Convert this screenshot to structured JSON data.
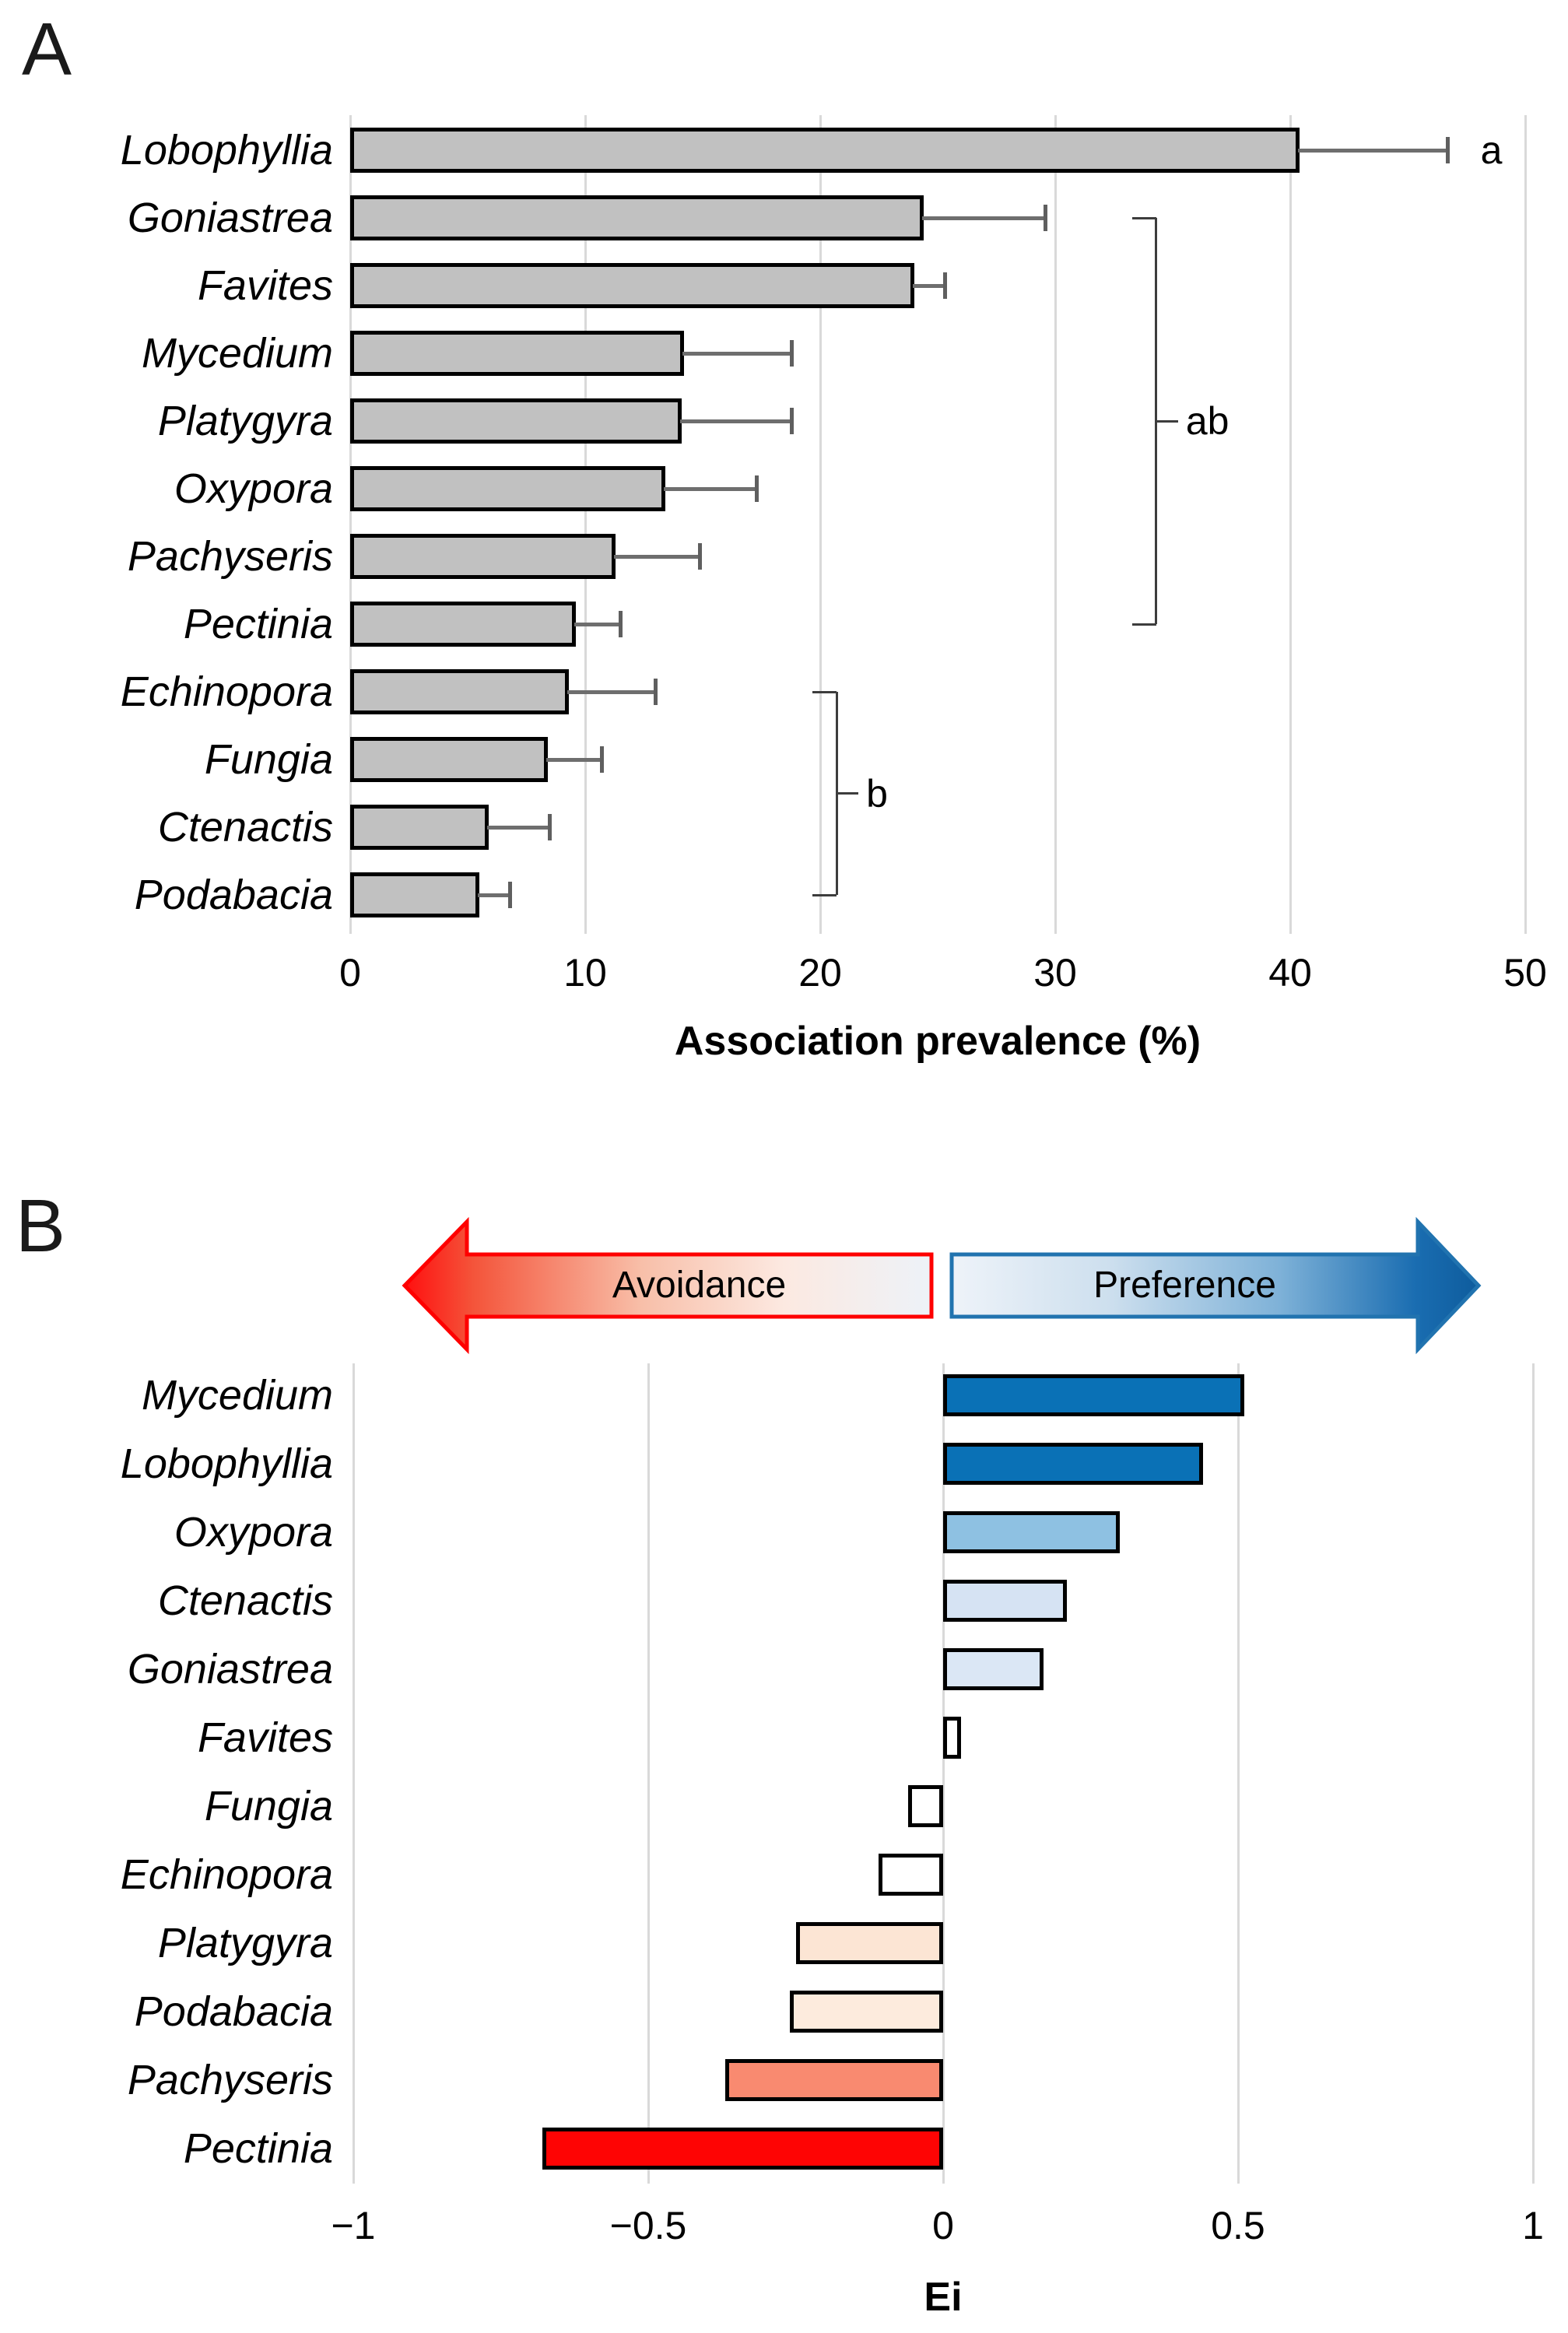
{
  "panel_a": {
    "letter": "A"
  },
  "panel_b": {
    "letter": "B"
  },
  "chart_data": [
    {
      "panel": "A",
      "type": "bar",
      "orientation": "horizontal",
      "categories": [
        "Lobophyllia",
        "Goniastrea",
        "Favites",
        "Mycedium",
        "Platygyra",
        "Oxypora",
        "Pachyseris",
        "Pectinia",
        "Echinopora",
        "Fungia",
        "Ctenactis",
        "Podabacia"
      ],
      "values": [
        40.4,
        24.4,
        24.0,
        14.2,
        14.1,
        13.4,
        11.3,
        9.6,
        9.3,
        8.4,
        5.9,
        5.5
      ],
      "error_plus": [
        6.3,
        5.2,
        1.3,
        4.6,
        4.7,
        3.9,
        3.6,
        1.9,
        3.7,
        2.3,
        2.6,
        1.3
      ],
      "xlabel": "Association prevalence (%)",
      "xlim": [
        0,
        50
      ],
      "x_ticks": [
        {
          "value": 0,
          "label": "0"
        },
        {
          "value": 10,
          "label": "10"
        },
        {
          "value": 20,
          "label": "20"
        },
        {
          "value": 30,
          "label": "30"
        },
        {
          "value": 40,
          "label": "40"
        },
        {
          "value": 50,
          "label": "50"
        }
      ],
      "grid": true,
      "grid_color": "#d9d9d9",
      "bar_fill": "#c1c1c1",
      "bar_outline": "#000000",
      "error_color": "#6e6e6e",
      "bracket_color": "#3d3d3d",
      "significance": [
        {
          "kind": "letter",
          "label": "a",
          "x": 48.1,
          "category": "Lobophyllia"
        },
        {
          "kind": "bracket",
          "label": "ab",
          "x": 34.3,
          "from": "Goniastrea",
          "to": "Pectinia"
        },
        {
          "kind": "bracket",
          "label": "b",
          "x": 20.7,
          "from": "Echinopora",
          "to": "Podabacia"
        }
      ]
    },
    {
      "panel": "B",
      "type": "bar",
      "orientation": "horizontal",
      "categories": [
        "Mycedium",
        "Lobophyllia",
        "Oxypora",
        "Ctenactis",
        "Goniastrea",
        "Favites",
        "Fungia",
        "Echinopora",
        "Platygyra",
        "Podabacia",
        "Pachyseris",
        "Pectinia"
      ],
      "values": [
        0.51,
        0.44,
        0.3,
        0.21,
        0.17,
        0.03,
        -0.06,
        -0.11,
        -0.25,
        -0.26,
        -0.37,
        -0.68
      ],
      "bar_colors": [
        "#0a71b6",
        "#0a71b6",
        "#8ec1e2",
        "#d6e3f3",
        "#dbe7f5",
        "#ffffff",
        "#ffffff",
        "#ffffff",
        "#fce5d4",
        "#fdebdd",
        "#f98a70",
        "#fe0404"
      ],
      "bar_outline": "#000000",
      "xlabel": "Ei",
      "xlim": [
        -1,
        1
      ],
      "x_ticks": [
        {
          "value": -1,
          "label": "−1"
        },
        {
          "value": -0.5,
          "label": "−0.5"
        },
        {
          "value": 0,
          "label": "0"
        },
        {
          "value": 0.5,
          "label": "0.5"
        },
        {
          "value": 1,
          "label": "1"
        }
      ],
      "grid": true,
      "grid_color": "#d9d9d9",
      "arrows": {
        "left_label": "Avoidance",
        "right_label": "Preference",
        "left_color": "#fe0000",
        "right_color": "#1b6db1"
      }
    }
  ]
}
